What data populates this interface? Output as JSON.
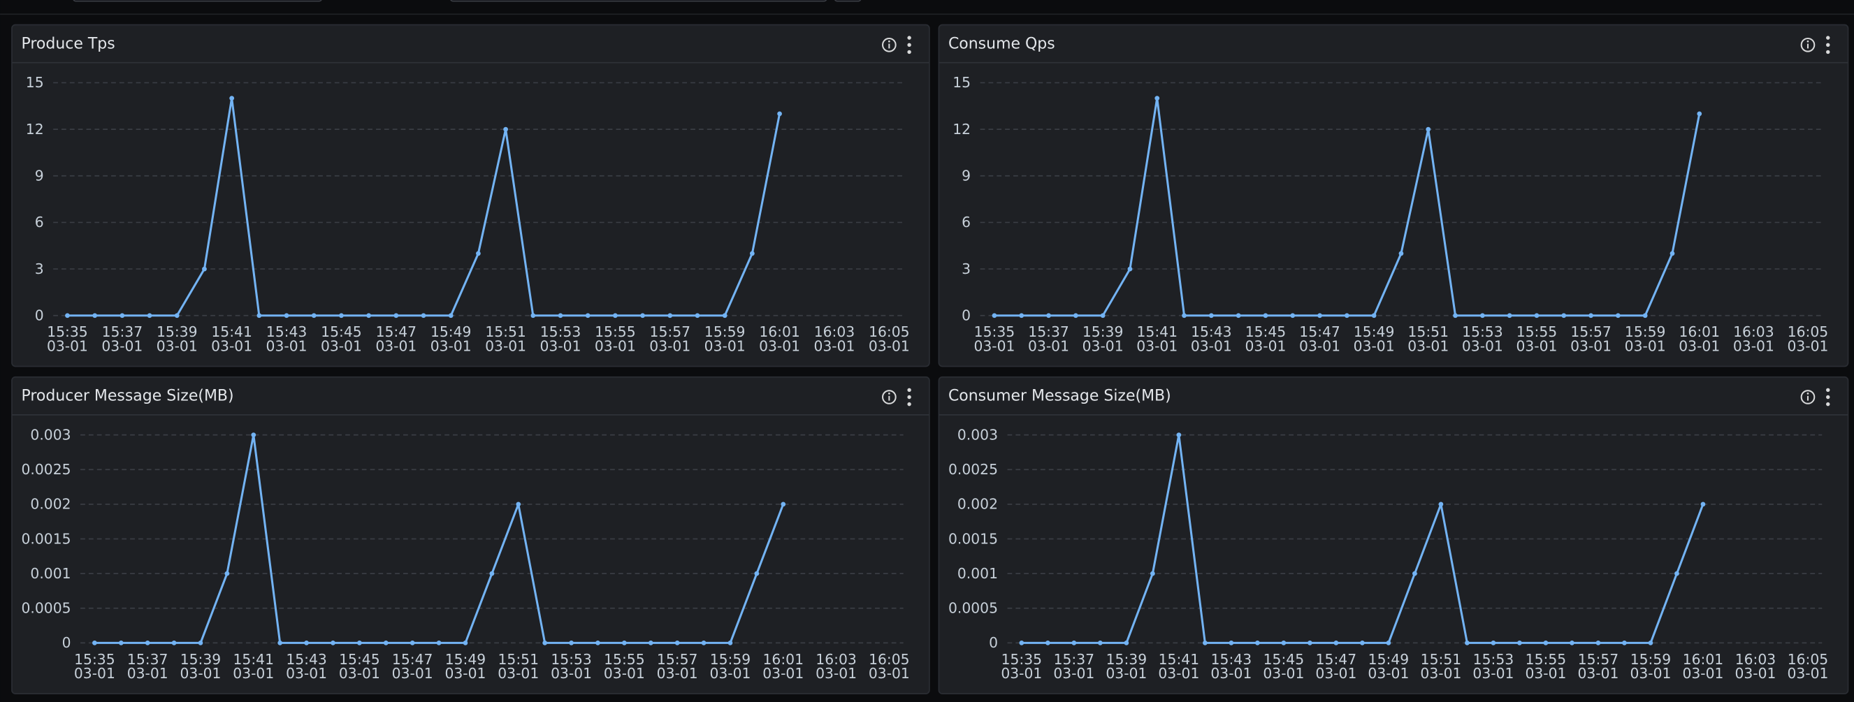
{
  "chart_data": [
    {
      "type": "line",
      "title": "Produce Tps",
      "categories": [
        [
          "15:35",
          "03-01"
        ],
        null,
        [
          "15:37",
          "03-01"
        ],
        null,
        [
          "15:39",
          "03-01"
        ],
        null,
        [
          "15:41",
          "03-01"
        ],
        null,
        [
          "15:43",
          "03-01"
        ],
        null,
        [
          "15:45",
          "03-01"
        ],
        null,
        [
          "15:47",
          "03-01"
        ],
        null,
        [
          "15:49",
          "03-01"
        ],
        null,
        [
          "15:51",
          "03-01"
        ],
        null,
        [
          "15:53",
          "03-01"
        ],
        null,
        [
          "15:55",
          "03-01"
        ],
        null,
        [
          "15:57",
          "03-01"
        ],
        null,
        [
          "15:59",
          "03-01"
        ],
        null,
        [
          "16:01",
          "03-01"
        ],
        null,
        [
          "16:03",
          "03-01"
        ],
        null,
        [
          "16:05",
          "03-01"
        ]
      ],
      "values": [
        0,
        0,
        0,
        0,
        0,
        3,
        14,
        0,
        0,
        0,
        0,
        0,
        0,
        0,
        0,
        4,
        12,
        0,
        0,
        0,
        0,
        0,
        0,
        0,
        0,
        4,
        13,
        null,
        null,
        null,
        null
      ],
      "color": "#73b3f3",
      "ylim": [
        0,
        15
      ],
      "yticks": [
        0,
        3,
        6,
        9,
        12,
        15
      ],
      "grid": true
    },
    {
      "type": "line",
      "title": "Consume Qps",
      "categories": [
        [
          "15:35",
          "03-01"
        ],
        null,
        [
          "15:37",
          "03-01"
        ],
        null,
        [
          "15:39",
          "03-01"
        ],
        null,
        [
          "15:41",
          "03-01"
        ],
        null,
        [
          "15:43",
          "03-01"
        ],
        null,
        [
          "15:45",
          "03-01"
        ],
        null,
        [
          "15:47",
          "03-01"
        ],
        null,
        [
          "15:49",
          "03-01"
        ],
        null,
        [
          "15:51",
          "03-01"
        ],
        null,
        [
          "15:53",
          "03-01"
        ],
        null,
        [
          "15:55",
          "03-01"
        ],
        null,
        [
          "15:57",
          "03-01"
        ],
        null,
        [
          "15:59",
          "03-01"
        ],
        null,
        [
          "16:01",
          "03-01"
        ],
        null,
        [
          "16:03",
          "03-01"
        ],
        null,
        [
          "16:05",
          "03-01"
        ]
      ],
      "values": [
        0,
        0,
        0,
        0,
        0,
        3,
        14,
        0,
        0,
        0,
        0,
        0,
        0,
        0,
        0,
        4,
        12,
        0,
        0,
        0,
        0,
        0,
        0,
        0,
        0,
        4,
        13,
        null,
        null,
        null,
        null
      ],
      "color": "#73b3f3",
      "ylim": [
        0,
        15
      ],
      "yticks": [
        0,
        3,
        6,
        9,
        12,
        15
      ],
      "grid": true
    },
    {
      "type": "line",
      "title": "Producer Message Size(MB)",
      "categories": [
        [
          "15:35",
          "03-01"
        ],
        null,
        [
          "15:37",
          "03-01"
        ],
        null,
        [
          "15:39",
          "03-01"
        ],
        null,
        [
          "15:41",
          "03-01"
        ],
        null,
        [
          "15:43",
          "03-01"
        ],
        null,
        [
          "15:45",
          "03-01"
        ],
        null,
        [
          "15:47",
          "03-01"
        ],
        null,
        [
          "15:49",
          "03-01"
        ],
        null,
        [
          "15:51",
          "03-01"
        ],
        null,
        [
          "15:53",
          "03-01"
        ],
        null,
        [
          "15:55",
          "03-01"
        ],
        null,
        [
          "15:57",
          "03-01"
        ],
        null,
        [
          "15:59",
          "03-01"
        ],
        null,
        [
          "16:01",
          "03-01"
        ],
        null,
        [
          "16:03",
          "03-01"
        ],
        null,
        [
          "16:05",
          "03-01"
        ]
      ],
      "values": [
        0,
        0,
        0,
        0,
        0,
        0.001,
        0.003,
        0,
        0,
        0,
        0,
        0,
        0,
        0,
        0,
        0.001,
        0.002,
        0,
        0,
        0,
        0,
        0,
        0,
        0,
        0,
        0.001,
        0.002,
        null,
        null,
        null,
        null
      ],
      "color": "#73b3f3",
      "ylim": [
        0,
        0.003
      ],
      "yticks": [
        0,
        0.0005,
        0.001,
        0.0015,
        0.002,
        0.0025,
        0.003
      ],
      "grid": true
    },
    {
      "type": "line",
      "title": "Consumer Message Size(MB)",
      "categories": [
        [
          "15:35",
          "03-01"
        ],
        null,
        [
          "15:37",
          "03-01"
        ],
        null,
        [
          "15:39",
          "03-01"
        ],
        null,
        [
          "15:41",
          "03-01"
        ],
        null,
        [
          "15:43",
          "03-01"
        ],
        null,
        [
          "15:45",
          "03-01"
        ],
        null,
        [
          "15:47",
          "03-01"
        ],
        null,
        [
          "15:49",
          "03-01"
        ],
        null,
        [
          "15:51",
          "03-01"
        ],
        null,
        [
          "15:53",
          "03-01"
        ],
        null,
        [
          "15:55",
          "03-01"
        ],
        null,
        [
          "15:57",
          "03-01"
        ],
        null,
        [
          "15:59",
          "03-01"
        ],
        null,
        [
          "16:01",
          "03-01"
        ],
        null,
        [
          "16:03",
          "03-01"
        ],
        null,
        [
          "16:05",
          "03-01"
        ]
      ],
      "values": [
        0,
        0,
        0,
        0,
        0,
        0.001,
        0.003,
        0,
        0,
        0,
        0,
        0,
        0,
        0,
        0,
        0.001,
        0.002,
        0,
        0,
        0,
        0,
        0,
        0,
        0,
        0,
        0.001,
        0.002,
        null,
        null,
        null,
        null
      ],
      "color": "#73b3f3",
      "ylim": [
        0,
        0.003
      ],
      "yticks": [
        0,
        0.0005,
        0.001,
        0.0015,
        0.002,
        0.0025,
        0.003
      ],
      "grid": true
    }
  ]
}
